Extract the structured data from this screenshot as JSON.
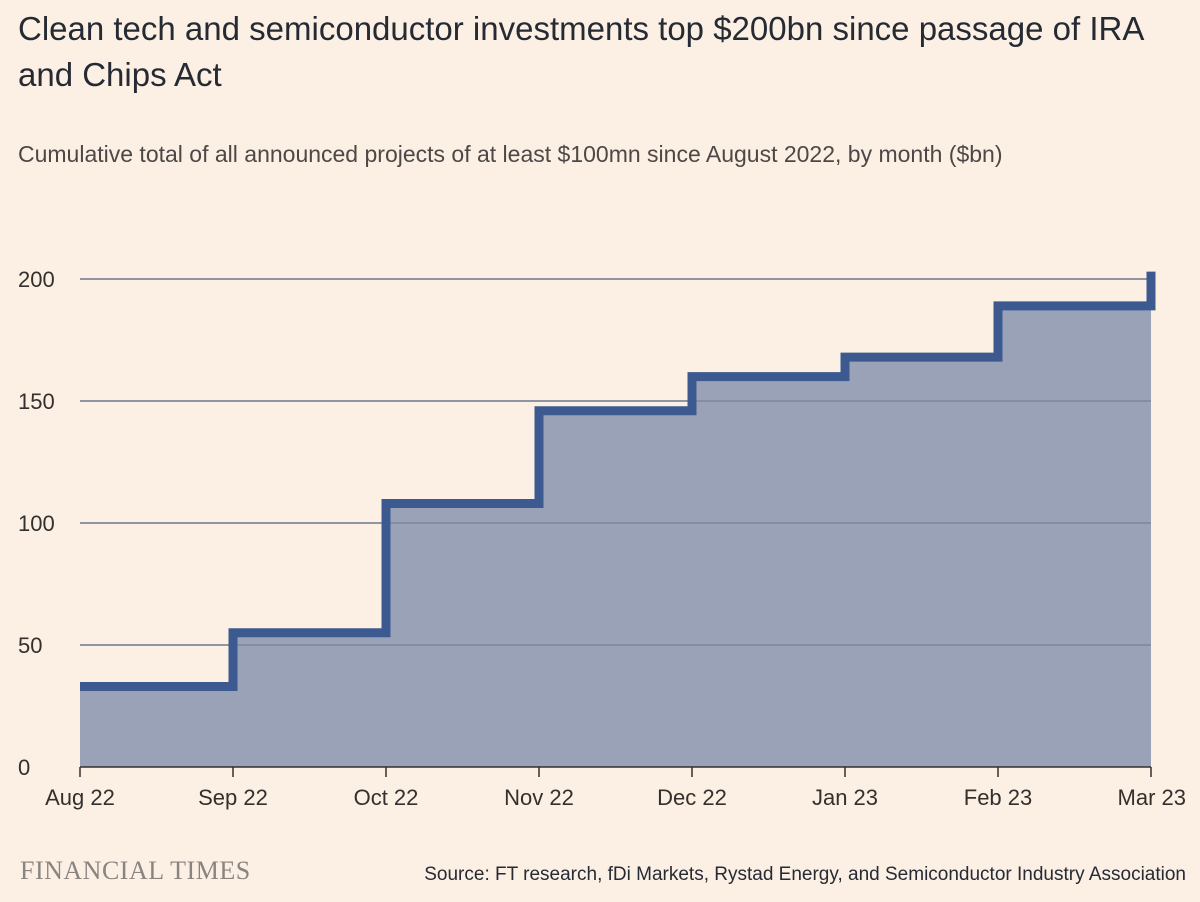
{
  "title": "Clean tech and semiconductor investments top $200bn since passage of IRA and Chips Act",
  "subtitle": "Cumulative total of all announced projects of at least $100mn since August 2022, by month ($bn)",
  "source": "Source: FT research, fDi Markets, Rystad Energy, and Semiconductor Industry Association",
  "logo_text": "FINANCIAL TIMES",
  "colors": {
    "background": "#fcf0e5",
    "fill": "#9aa2b8",
    "line": "#3c5a8f",
    "grid": "#c8c2bb"
  },
  "chart_data": {
    "type": "area",
    "step": true,
    "x_ticks": [
      "Aug 22",
      "Sep 22",
      "Oct 22",
      "Nov 22",
      "Dec 22",
      "Jan 23",
      "Feb 23",
      "Mar 23"
    ],
    "steps": [
      {
        "from": "Aug 22",
        "to": "Sep 22",
        "value": 33
      },
      {
        "from": "Sep 22",
        "to": "Oct 22",
        "value": 55
      },
      {
        "from": "Oct 22",
        "to": "Nov 22",
        "value": 108
      },
      {
        "from": "Nov 22",
        "to": "Dec 22",
        "value": 146
      },
      {
        "from": "Dec 22",
        "to": "Jan 23",
        "value": 160
      },
      {
        "from": "Jan 23",
        "to": "Feb 23",
        "value": 168
      },
      {
        "from": "Feb 23",
        "to": "Mar 23",
        "value": 189
      }
    ],
    "final_value": 203,
    "y_ticks": [
      0,
      50,
      100,
      150,
      200
    ],
    "ylim": [
      0,
      200
    ],
    "grid": true
  }
}
